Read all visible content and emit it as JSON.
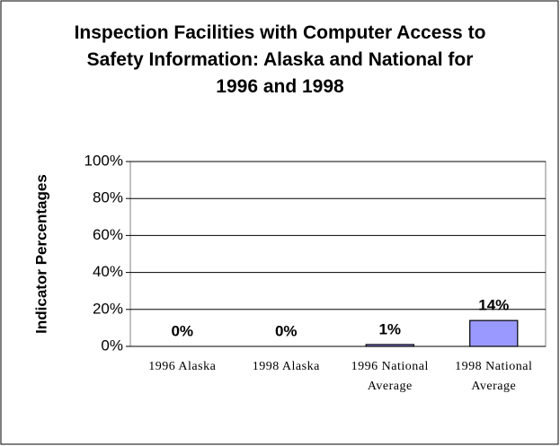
{
  "chart_data": {
    "type": "bar",
    "title": "Inspection Facilities with Computer Access to Safety Information: Alaska and National for 1996 and 1998",
    "y_label": "Indicator Percentages",
    "categories": [
      "1996 Alaska",
      "1998 Alaska",
      "1996 National Average",
      "1998 National Average"
    ],
    "values": [
      0,
      0,
      1,
      14
    ],
    "value_labels": [
      "0%",
      "0%",
      "1%",
      "14%"
    ],
    "color": "#9999ff",
    "ylim": [
      0,
      100
    ],
    "yticks": [
      {
        "value": 0,
        "label": "0%"
      },
      {
        "value": 20,
        "label": "20%"
      },
      {
        "value": 40,
        "label": "40%"
      },
      {
        "value": 60,
        "label": "60%"
      },
      {
        "value": 80,
        "label": "80%"
      },
      {
        "value": 100,
        "label": "100%"
      }
    ],
    "grid": true
  }
}
